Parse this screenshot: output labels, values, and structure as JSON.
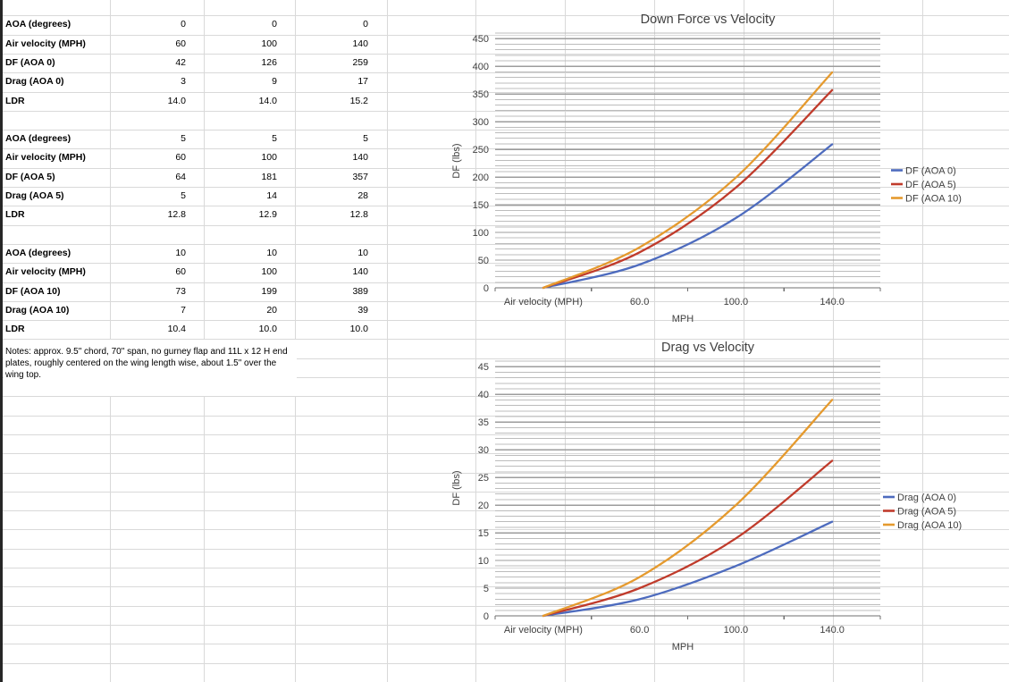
{
  "table": {
    "blocks": [
      {
        "rows": [
          {
            "label": "AOA (degrees)",
            "values": [
              "0",
              "0",
              "0"
            ]
          },
          {
            "label": "Air velocity (MPH)",
            "values": [
              "60",
              "100",
              "140"
            ]
          },
          {
            "label": "DF (AOA 0)",
            "values": [
              "42",
              "126",
              "259"
            ]
          },
          {
            "label": "Drag (AOA 0)",
            "values": [
              "3",
              "9",
              "17"
            ]
          },
          {
            "label": "LDR",
            "values": [
              "14.0",
              "14.0",
              "15.2"
            ]
          }
        ]
      },
      {
        "rows": [
          {
            "label": "AOA (degrees)",
            "values": [
              "5",
              "5",
              "5"
            ]
          },
          {
            "label": "Air velocity (MPH)",
            "values": [
              "60",
              "100",
              "140"
            ]
          },
          {
            "label": "DF (AOA 5)",
            "values": [
              "64",
              "181",
              "357"
            ]
          },
          {
            "label": "Drag (AOA 5)",
            "values": [
              "5",
              "14",
              "28"
            ]
          },
          {
            "label": "LDR",
            "values": [
              "12.8",
              "12.9",
              "12.8"
            ]
          }
        ]
      },
      {
        "rows": [
          {
            "label": "AOA (degrees)",
            "values": [
              "10",
              "10",
              "10"
            ]
          },
          {
            "label": "Air velocity (MPH)",
            "values": [
              "60",
              "100",
              "140"
            ]
          },
          {
            "label": "DF (AOA 10)",
            "values": [
              "73",
              "199",
              "389"
            ]
          },
          {
            "label": "Drag (AOA 10)",
            "values": [
              "7",
              "20",
              "39"
            ]
          },
          {
            "label": "LDR",
            "values": [
              "10.4",
              "10.0",
              "10.0"
            ]
          }
        ]
      }
    ],
    "notes": "Notes: approx. 9.5\" chord, 70\" span, no gurney flap and 11L x 12 H end plates, roughly centered on the wing length wise, about 1.5\" over the wing top."
  },
  "chart_data": [
    {
      "type": "line",
      "title": "Down Force vs Velocity",
      "categories": [
        "Air velocity (MPH)",
        "60.0",
        "100.0",
        "140.0"
      ],
      "series": [
        {
          "name": "DF (AOA 0)",
          "color": "#4D6BBE",
          "values": [
            0,
            42,
            126,
            259
          ]
        },
        {
          "name": "DF (AOA 5)",
          "color": "#C03B2B",
          "values": [
            0,
            64,
            181,
            357
          ]
        },
        {
          "name": "DF (AOA 10)",
          "color": "#E59A2E",
          "values": [
            0,
            73,
            199,
            389
          ]
        }
      ],
      "xlabel": "MPH",
      "ylabel": "DF (lbs)",
      "yticks": [
        0,
        50,
        100,
        150,
        200,
        250,
        300,
        350,
        400,
        450
      ],
      "ylim": [
        0,
        460
      ],
      "y_major_unit": 50,
      "y_minor_unit": 10,
      "grid": "major+minor horizontal",
      "legend_position": "right",
      "smooth_lines": true
    },
    {
      "type": "line",
      "title": "Drag vs Velocity",
      "categories": [
        "Air velocity (MPH)",
        "60.0",
        "100.0",
        "140.0"
      ],
      "series": [
        {
          "name": "Drag (AOA 0)",
          "color": "#4D6BBE",
          "values": [
            0,
            3,
            9,
            17
          ]
        },
        {
          "name": "Drag (AOA 5)",
          "color": "#C03B2B",
          "values": [
            0,
            5,
            14,
            28
          ]
        },
        {
          "name": "Drag (AOA 10)",
          "color": "#E59A2E",
          "values": [
            0,
            7,
            20,
            39
          ]
        }
      ],
      "xlabel": "MPH",
      "ylabel": "DF (lbs)",
      "yticks": [
        0,
        5,
        10,
        15,
        20,
        25,
        30,
        35,
        40,
        45
      ],
      "ylim": [
        0,
        46
      ],
      "y_major_unit": 5,
      "y_minor_unit": 1,
      "grid": "major+minor horizontal",
      "legend_position": "right",
      "smooth_lines": true
    }
  ]
}
